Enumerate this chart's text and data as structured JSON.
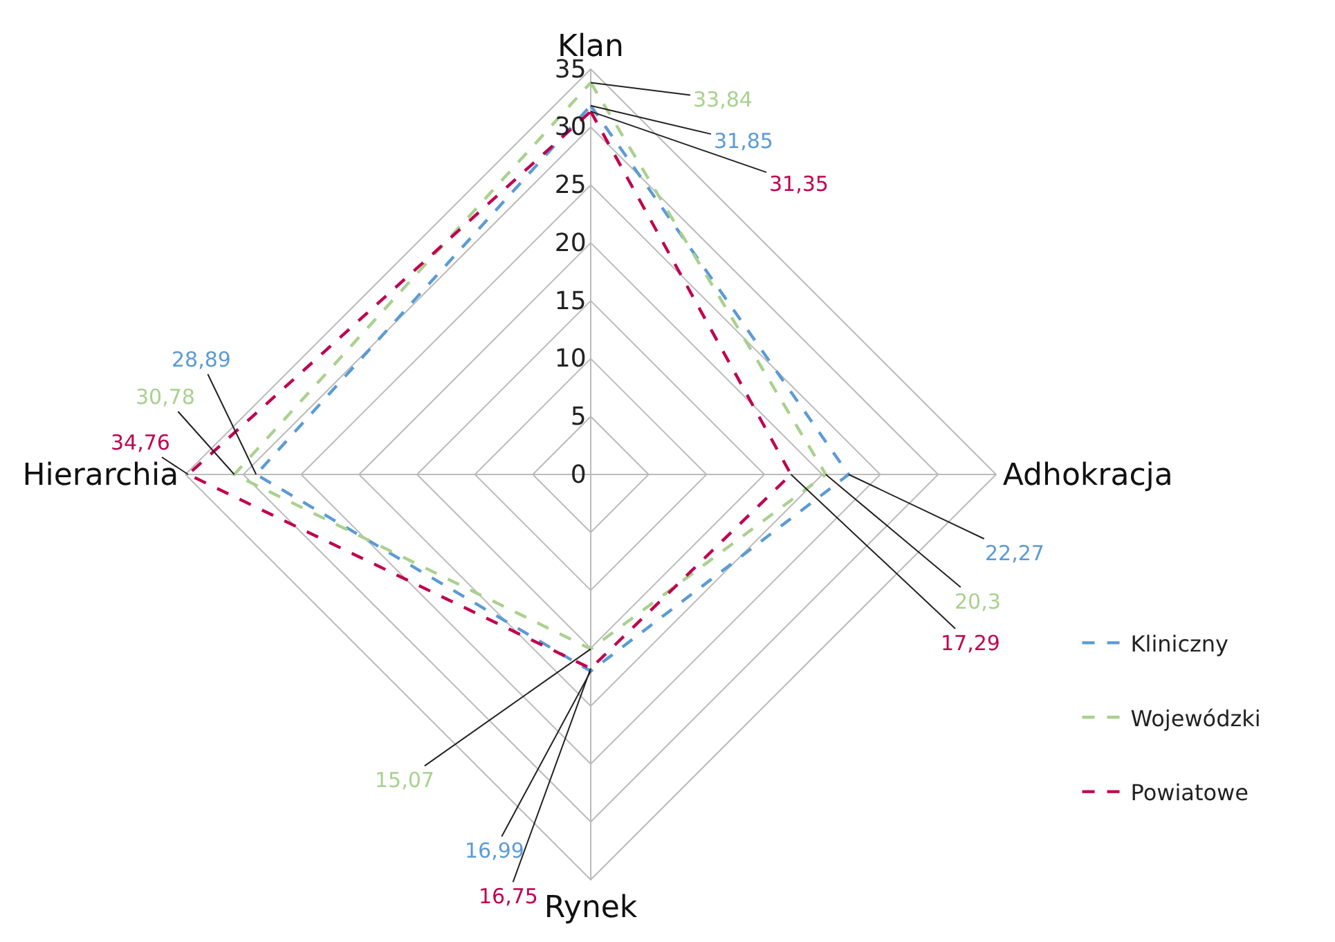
{
  "chart_data": {
    "type": "radar",
    "categories": [
      "Klan",
      "Adhokracja",
      "Rynek",
      "Hierarchia"
    ],
    "series": [
      {
        "name": "Kliniczny",
        "color": "#5b9bd5",
        "values": [
          31.85,
          22.27,
          16.99,
          28.89
        ],
        "value_labels": [
          "31,85",
          "22,27",
          "16,99",
          "28,89"
        ]
      },
      {
        "name": "Wojewódzki",
        "color": "#a9d18e",
        "values": [
          33.84,
          20.3,
          15.07,
          30.78
        ],
        "value_labels": [
          "33,84",
          "20,3",
          "15,07",
          "30,78"
        ]
      },
      {
        "name": "Powiatowe",
        "color": "#c0004f",
        "values": [
          31.35,
          17.29,
          16.75,
          34.76
        ],
        "value_labels": [
          "31,35",
          "17,29",
          "16,75",
          "34,76"
        ]
      }
    ],
    "ylim": [
      0,
      35
    ],
    "yticks": [
      0,
      5,
      10,
      15,
      20,
      25,
      30,
      35
    ],
    "grid": true,
    "legend": "right",
    "line_style": "dashed",
    "marker": "none"
  }
}
